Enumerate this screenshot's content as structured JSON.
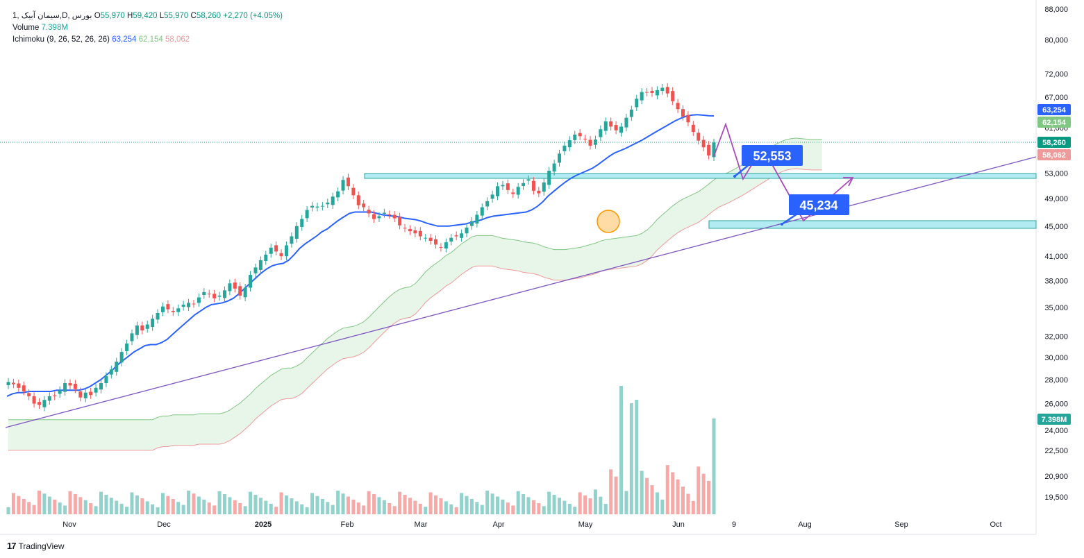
{
  "legend": {
    "symbol": "سیمان آبیک",
    "exchange": "بورس",
    "interval": "D",
    "multiplier": "1",
    "open_label": "O",
    "open": "55,970",
    "high_label": "H",
    "high": "59,420",
    "low_label": "L",
    "low": "55,970",
    "close_label": "C",
    "close": "58,260",
    "change": "+2,270 (+4.05%)",
    "volume_label": "Volume",
    "volume": "7.398M",
    "ichimoku_label": "Ichimoku (9, 26, 52, 26, 26)",
    "ichimoku_v1": "63,254",
    "ichimoku_v2": "62,154",
    "ichimoku_v3": "58,062"
  },
  "branding": {
    "name": "TradingView"
  },
  "colors": {
    "up": "#26a69a",
    "down": "#ef5350",
    "kijun": "#2962ff",
    "span_a": "#81c784",
    "span_b": "#ef9a9a",
    "cloud": "#e8f5e9",
    "zone": "#b2ebf2",
    "trendline": "#7e57c2",
    "projection": "#ab47bc",
    "callout": "#2962ff",
    "circle": "#ff9800"
  },
  "chart_data": {
    "type": "candlestick",
    "y_axis": {
      "scale": "log",
      "range": [
        18500,
        88000
      ],
      "ticks": [
        "88,000",
        "80,000",
        "72,000",
        "67,000",
        "61,000",
        "53,000",
        "49,000",
        "45,000",
        "41,000",
        "38,000",
        "35,000",
        "32,000",
        "30,000",
        "28,000",
        "26,000",
        "24,000",
        "22,500",
        "20,900",
        "19,500"
      ]
    },
    "x_axis": {
      "tick_labels": [
        "Nov",
        "Dec",
        "2025",
        "Feb",
        "Mar",
        "Apr",
        "May",
        "Jun",
        "9",
        "Aug",
        "Sep",
        "Oct"
      ]
    },
    "price_labels": [
      {
        "text": "63,254",
        "color": "#2962ff"
      },
      {
        "text": "62,154",
        "color": "#81c784"
      },
      {
        "text": "58,260",
        "color": "#089981"
      },
      {
        "text": "58,062",
        "color": "#ef9a9a"
      },
      {
        "text": "7.398M",
        "color": "#26a69a"
      }
    ],
    "candles_ohlc_close_series": [
      27800,
      27600,
      27300,
      27000,
      26600,
      26000,
      25900,
      26300,
      26600,
      26600,
      27100,
      27700,
      27500,
      27200,
      26500,
      26900,
      26700,
      27300,
      27700,
      28300,
      28900,
      29600,
      30500,
      31300,
      32300,
      33100,
      32600,
      33200,
      33800,
      34400,
      35100,
      34800,
      34500,
      34900,
      35300,
      35500,
      35400,
      36100,
      36700,
      36500,
      36000,
      36300,
      36900,
      37700,
      37100,
      36300,
      37200,
      38700,
      39600,
      40500,
      41200,
      42100,
      41600,
      41000,
      42400,
      43600,
      45000,
      46000,
      47300,
      47900,
      47800,
      47900,
      48400,
      49300,
      50100,
      51900,
      50900,
      49500,
      48000,
      47700,
      46800,
      46000,
      46400,
      46900,
      46600,
      46100,
      45100,
      44700,
      44300,
      44000,
      43600,
      43400,
      43000,
      42500,
      42100,
      42800,
      43400,
      43600,
      44000,
      44800,
      45700,
      46600,
      47700,
      48600,
      49600,
      50900,
      51100,
      50300,
      49700,
      50800,
      51400,
      52000,
      50200,
      49800,
      51500,
      53400,
      54600,
      56300,
      57700,
      58700,
      59700,
      59400,
      58900,
      57700,
      58800,
      60700,
      62200,
      61200,
      60500,
      61200,
      62900,
      64500,
      66700,
      68100,
      68000,
      67900,
      68500,
      69000,
      67800,
      66200,
      64600,
      63100,
      62000,
      60200,
      58600,
      57400,
      55970,
      58260
    ],
    "kijun_series": [
      26600,
      26800,
      26900,
      26900,
      27000,
      27000,
      27000,
      27000,
      27000,
      27100,
      27100,
      27100,
      27100,
      27100,
      27200,
      27400,
      27700,
      28000,
      28400,
      28800,
      29300,
      29700,
      30100,
      30500,
      30800,
      31100,
      31200,
      31200,
      31400,
      31700,
      32200,
      32700,
      33200,
      33700,
      34200,
      34600,
      35000,
      35300,
      35400,
      35500,
      35700,
      36000,
      36500,
      37100,
      37700,
      38300,
      38900,
      39400,
      39800,
      40000,
      40100,
      40500,
      41200,
      42000,
      42600,
      43100,
      43600,
      44200,
      44600,
      45200,
      45800,
      46300,
      46800,
      47000,
      47000,
      47000,
      47000,
      46800,
      46600,
      46500,
      46400,
      46300,
      46100,
      46000,
      45900,
      45700,
      45400,
      45200,
      45000,
      45000,
      45000,
      45100,
      45200,
      45300,
      45500,
      45700,
      45900,
      46200,
      46400,
      46500,
      46600,
      46700,
      46800,
      46900,
      47000,
      47300,
      47800,
      48500,
      49400,
      50100,
      50800,
      51500,
      52100,
      52600,
      53000,
      53400,
      53800,
      54400,
      55100,
      55800,
      56400,
      56800,
      57200,
      57700,
      58200,
      58700,
      59300,
      59900,
      60500,
      61100,
      61700,
      62300,
      62800,
      63200,
      63400,
      63500,
      63400,
      63300,
      63254
    ]
  }
}
